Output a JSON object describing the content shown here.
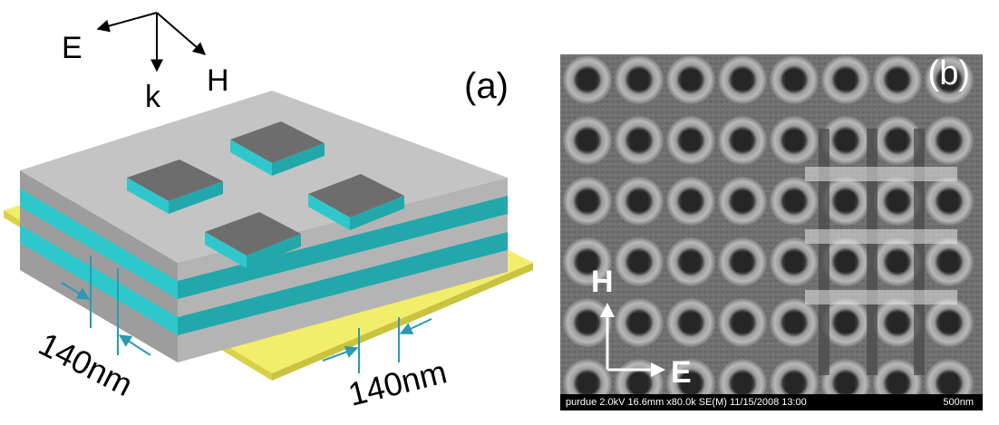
{
  "panel_a": {
    "label": "(a)",
    "axes": {
      "e_label": "E",
      "h_label": "H",
      "k_label": "k"
    },
    "dimensions": {
      "left": "140nm",
      "right": "140nm"
    },
    "colors": {
      "metal": "#c4c4c4",
      "metal_side": "#9d9d9d",
      "dielectric": "#2ec8cc",
      "dielectric_dark": "#22a8ab",
      "substrate": "#f2ee6a",
      "arrow": "#2a9bb0"
    }
  },
  "panel_b": {
    "label": "(b)",
    "sem_info": "purdue 2.0kV 16.6mm x80.0k SE(M) 11/15/2008 13:00",
    "scale_label": "500nm",
    "axes": {
      "h_label": "H",
      "e_label": "E"
    }
  }
}
